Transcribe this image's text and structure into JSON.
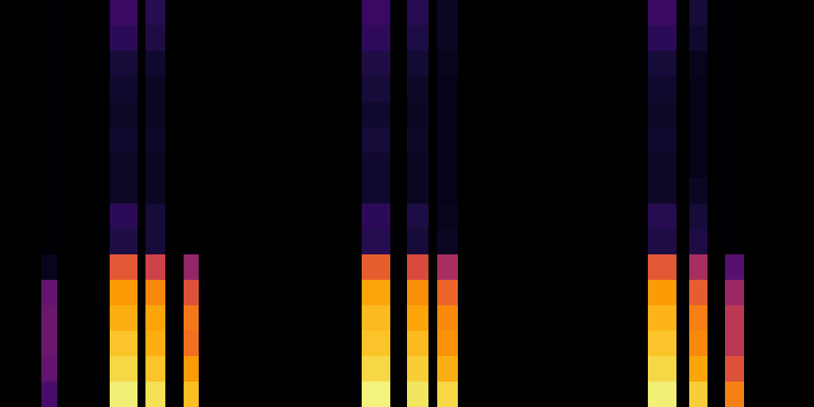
{
  "chart_data": {
    "type": "heatmap",
    "color": "inferno",
    "tick_labels": false,
    "grid": false,
    "xlim": [
      0,
      1024
    ],
    "ylim": [
      0,
      512
    ],
    "zlim": [
      0,
      1
    ],
    "y_bins": [
      0,
      32,
      64,
      96,
      128,
      160,
      192,
      224,
      256,
      288,
      320,
      352,
      384,
      416,
      448,
      480,
      512
    ],
    "cells": [
      {
        "x0": 52,
        "x1": 72,
        "values": [
          0.22,
          0.28,
          0.3,
          0.3,
          0.28,
          0.05,
          0,
          0,
          0,
          0,
          0,
          0,
          0,
          0,
          0,
          0
        ]
      },
      {
        "x0": 138,
        "x1": 173,
        "values": [
          0.95,
          0.9,
          0.86,
          0.82,
          0.78,
          0.62,
          0.12,
          0.15,
          0.07,
          0.07,
          0.08,
          0.07,
          0.08,
          0.1,
          0.15,
          0.18
        ]
      },
      {
        "x0": 183,
        "x1": 208,
        "values": [
          0.92,
          0.86,
          0.82,
          0.8,
          0.74,
          0.55,
          0.1,
          0.1,
          0.06,
          0.06,
          0.07,
          0.06,
          0.06,
          0.08,
          0.12,
          0.14
        ]
      },
      {
        "x0": 231,
        "x1": 250,
        "values": [
          0.85,
          0.78,
          0.68,
          0.7,
          0.6,
          0.4,
          0,
          0,
          0,
          0,
          0,
          0,
          0,
          0,
          0,
          0
        ]
      },
      {
        "x0": 455,
        "x1": 491,
        "values": [
          0.96,
          0.9,
          0.86,
          0.84,
          0.8,
          0.64,
          0.14,
          0.15,
          0.08,
          0.08,
          0.1,
          0.08,
          0.1,
          0.12,
          0.16,
          0.18
        ]
      },
      {
        "x0": 512,
        "x1": 539,
        "values": [
          0.93,
          0.88,
          0.84,
          0.8,
          0.75,
          0.58,
          0.1,
          0.12,
          0.06,
          0.06,
          0.07,
          0.06,
          0.07,
          0.09,
          0.12,
          0.14
        ]
      },
      {
        "x0": 550,
        "x1": 576,
        "values": [
          0.9,
          0.82,
          0.76,
          0.74,
          0.66,
          0.45,
          0.06,
          0.05,
          0.04,
          0.04,
          0.04,
          0.04,
          0.04,
          0.05,
          0.06,
          0.06
        ]
      },
      {
        "x0": 815,
        "x1": 851,
        "values": [
          0.95,
          0.9,
          0.86,
          0.83,
          0.78,
          0.62,
          0.12,
          0.14,
          0.07,
          0.07,
          0.08,
          0.07,
          0.08,
          0.1,
          0.15,
          0.18
        ]
      },
      {
        "x0": 867,
        "x1": 890,
        "values": [
          0.88,
          0.8,
          0.74,
          0.72,
          0.64,
          0.45,
          0.12,
          0.1,
          0.06,
          0.04,
          0.04,
          0.04,
          0.04,
          0.05,
          0.08,
          0.1
        ]
      },
      {
        "x0": 912,
        "x1": 936,
        "values": [
          0.72,
          0.6,
          0.5,
          0.5,
          0.42,
          0.25,
          0,
          0,
          0,
          0,
          0,
          0,
          0,
          0,
          0,
          0
        ]
      }
    ]
  }
}
